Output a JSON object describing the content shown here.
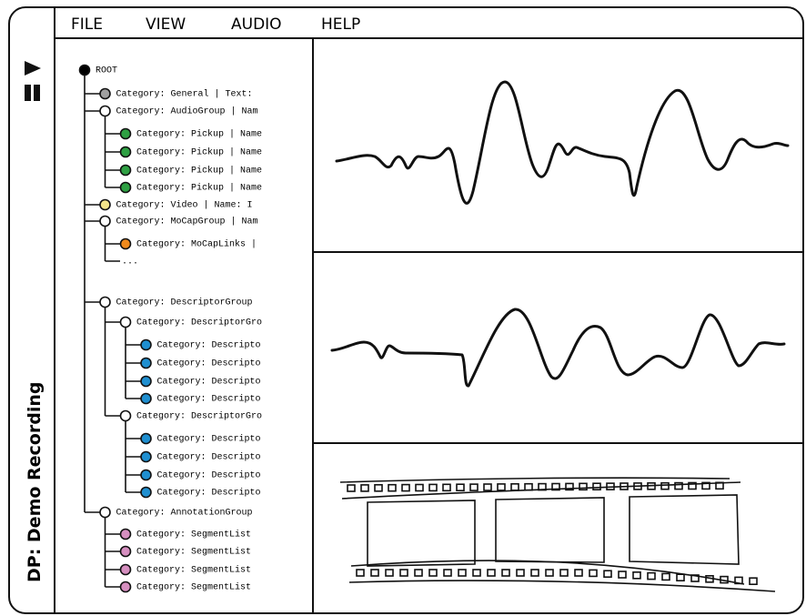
{
  "menu": [
    "FILE",
    "VIEW",
    "AUDIO",
    "HELP"
  ],
  "sidebar": {
    "label": "DP: Demo Recording"
  },
  "tree": {
    "nodes": [
      {
        "depth": 0,
        "label": "ROOT",
        "color": "#000000"
      },
      {
        "depth": 1,
        "label": "Category:  General | Text:",
        "color": "#a0a0a0"
      },
      {
        "depth": 1,
        "label": "Category:  AudioGroup | Nam",
        "color": "#ffffff"
      },
      {
        "depth": 2,
        "label": "Category:  Pickup | Name",
        "color": "#2ea043"
      },
      {
        "depth": 2,
        "label": "Category:  Pickup | Name",
        "color": "#2ea043"
      },
      {
        "depth": 2,
        "label": "Category:  Pickup | Name",
        "color": "#2ea043"
      },
      {
        "depth": 2,
        "label": "Category:  Pickup | Name",
        "color": "#2ea043"
      },
      {
        "depth": 1,
        "label": "Category:  Video | Name:  I",
        "color": "#f3e58a"
      },
      {
        "depth": 1,
        "label": "Category:  MoCapGroup | Nam",
        "color": "#ffffff"
      },
      {
        "depth": 2,
        "label": "Category:  MoCapLinks |",
        "color": "#f08a1c"
      },
      {
        "depth": 2,
        "label": "..."
      },
      {
        "depth": 1,
        "label": "Category:  DescriptorGroup",
        "color": "#ffffff"
      },
      {
        "depth": 2,
        "label": "Category:  DescriptorGro",
        "color": "#ffffff"
      },
      {
        "depth": 3,
        "label": "Category:  Descripto",
        "color": "#1f8fd0"
      },
      {
        "depth": 3,
        "label": "Category:  Descripto",
        "color": "#1f8fd0"
      },
      {
        "depth": 3,
        "label": "Category:  Descripto",
        "color": "#1f8fd0"
      },
      {
        "depth": 3,
        "label": "Category:  Descripto",
        "color": "#1f8fd0"
      },
      {
        "depth": 2,
        "label": "Category:  DescriptorGro",
        "color": "#ffffff"
      },
      {
        "depth": 3,
        "label": "Category:  Descripto",
        "color": "#1f8fd0"
      },
      {
        "depth": 3,
        "label": "Category:  Descripto",
        "color": "#1f8fd0"
      },
      {
        "depth": 3,
        "label": "Category:  Descripto",
        "color": "#1f8fd0"
      },
      {
        "depth": 3,
        "label": "Category:  Descripto",
        "color": "#1f8fd0"
      },
      {
        "depth": 1,
        "label": "Category:  AnnotationGroup",
        "color": "#ffffff"
      },
      {
        "depth": 2,
        "label": "Category:  SegmentList",
        "color": "#d68fc0"
      },
      {
        "depth": 2,
        "label": "Category:  SegmentList",
        "color": "#d68fc0"
      },
      {
        "depth": 2,
        "label": "Category:  SegmentList",
        "color": "#d68fc0"
      },
      {
        "depth": 2,
        "label": "Category:  SegmentList",
        "color": "#d68fc0"
      }
    ]
  }
}
